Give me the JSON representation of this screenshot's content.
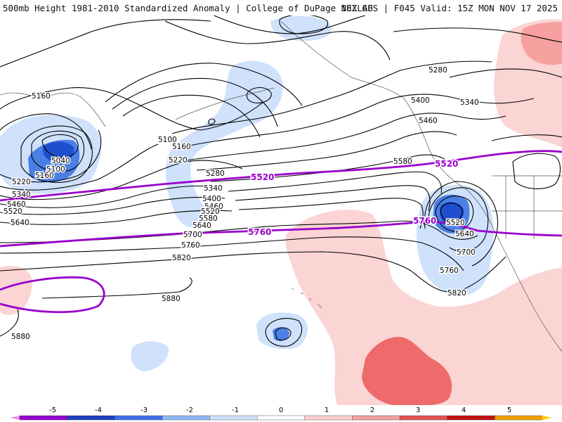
{
  "header": {
    "title_left": "500mb Height 1981-2010 Standardized Anomaly | College of DuPage NEXLAB",
    "title_right": "18Z GFS | F045 Valid: 15Z MON NOV 17 2025"
  },
  "map": {
    "contour_labels": [
      "5160",
      "5040",
      "5100",
      "5160",
      "5220",
      "5340",
      "5460",
      "5520",
      "5640",
      "5100",
      "5160",
      "5220",
      "5280",
      "5340",
      "5400",
      "5460",
      "5520",
      "5580",
      "5640",
      "5700",
      "5760",
      "5820",
      "5880",
      "5880",
      "5280",
      "5340",
      "5400",
      "5460",
      "5580",
      "5520",
      "5640",
      "5700",
      "5760",
      "5820"
    ],
    "purple_labels": [
      "5520",
      "5520",
      "5760",
      "5760"
    ],
    "colors": {
      "neg_light": "#cfe1fb",
      "neg_mid": "#8fb4f0",
      "neg_strong": "#4a7fe6",
      "neg_deep": "#1f4fcc",
      "pos_light": "#fbd4d4",
      "pos_mid": "#f6a0a0",
      "pos_strong": "#ee6b6b",
      "purple": "#9900cc"
    }
  },
  "colorbar": {
    "ticks": [
      "-5",
      "-4",
      "-3",
      "-2",
      "-1",
      "0",
      "1",
      "2",
      "3",
      "4",
      "5"
    ],
    "colors": [
      "#e88ee8",
      "#9400d3",
      "#1e3fbf",
      "#3d6ee8",
      "#8fb6f4",
      "#cfe1fb",
      "#ffffff",
      "#fbd0d0",
      "#f4a0a0",
      "#e65050",
      "#c41010",
      "#f0a000",
      "#ffd000"
    ]
  }
}
